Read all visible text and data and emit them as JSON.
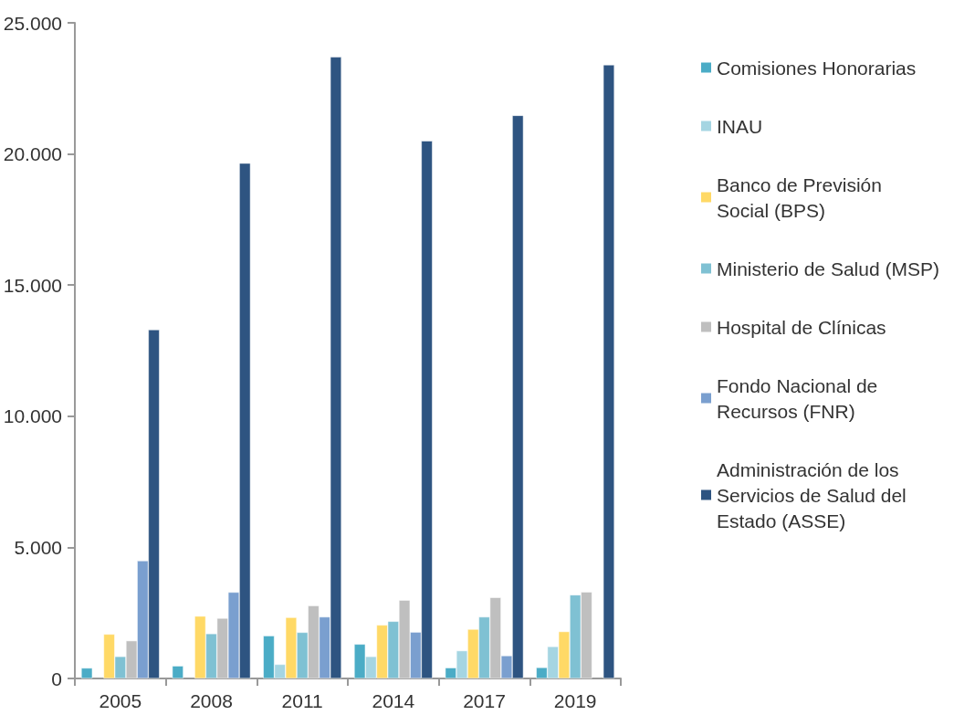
{
  "chart_data": {
    "type": "bar",
    "categories": [
      "2005",
      "2008",
      "2011",
      "2014",
      "2017",
      "2019"
    ],
    "series": [
      {
        "name": "Comisiones Honorarias",
        "color": "#4bacc6",
        "values": [
          400,
          480,
          1630,
          1310,
          410,
          420
        ]
      },
      {
        "name": "INAU",
        "color": "#a5d5e2",
        "values": [
          null,
          null,
          540,
          840,
          1060,
          1220
        ]
      },
      {
        "name": "Banco de Previsión Social (BPS)",
        "color": "#ffd966",
        "values": [
          1690,
          2380,
          2330,
          2040,
          1880,
          1790
        ]
      },
      {
        "name": "Ministerio de Salud (MSP)",
        "color": "#7fc1d3",
        "values": [
          840,
          1710,
          1760,
          2180,
          2350,
          3190
        ]
      },
      {
        "name": "Hospital de Clínicas",
        "color": "#bfbfbf",
        "values": [
          1440,
          2300,
          2780,
          2990,
          3090,
          3300
        ]
      },
      {
        "name": "Fondo Nacional de Recursos (FNR)",
        "color": "#7a9fcf",
        "values": [
          4490,
          3290,
          2350,
          1770,
          870,
          null
        ]
      },
      {
        "name": "Administración de los Servicios de Salud del Estado (ASSE)",
        "color": "#2e5481",
        "values": [
          13300,
          19650,
          23700,
          20500,
          21470,
          23400
        ]
      }
    ],
    "ylim": [
      0,
      25000
    ],
    "yticks": [
      {
        "value": 0,
        "label": "0"
      },
      {
        "value": 5000,
        "label": "5.000"
      },
      {
        "value": 10000,
        "label": "10.000"
      },
      {
        "value": 15000,
        "label": "15.000"
      },
      {
        "value": 20000,
        "label": "20.000"
      },
      {
        "value": 25000,
        "label": "25.000"
      }
    ],
    "grid": false,
    "legend": "right"
  }
}
